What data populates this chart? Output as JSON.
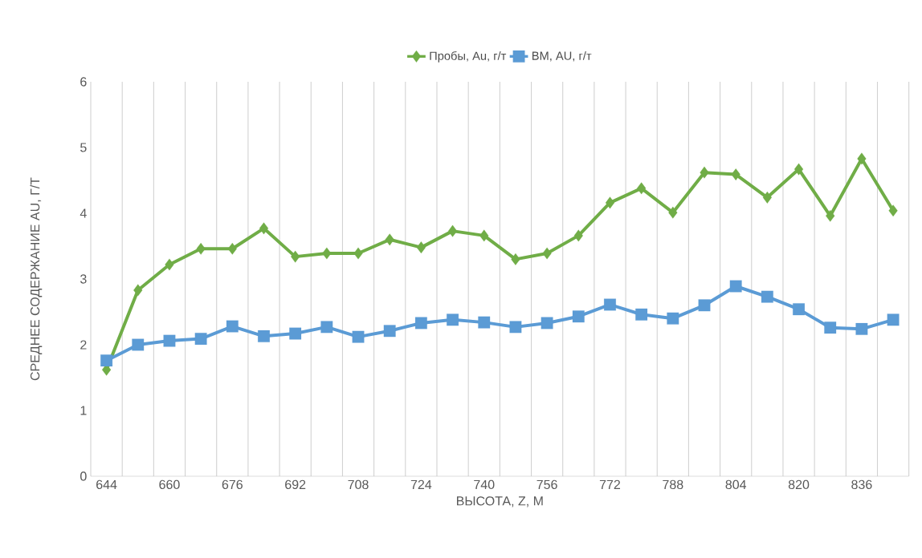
{
  "chart_data": {
    "type": "line",
    "xlabel": "ВЫСОТА, Z, М",
    "ylabel": "СРЕДНЕЕ СОДЕРЖАНИЕ AU, Г/Т",
    "categories": [
      "644",
      null,
      "660",
      null,
      "676",
      null,
      "692",
      null,
      "708",
      null,
      "724",
      null,
      "740",
      null,
      "756",
      null,
      "772",
      null,
      "788",
      null,
      "804",
      null,
      "820",
      null,
      "836",
      null
    ],
    "series": [
      {
        "name": "Пробы, Au, г/т",
        "color": "#70ad47",
        "marker": "diamond",
        "values": [
          1.62,
          2.83,
          3.22,
          3.46,
          3.46,
          3.77,
          3.34,
          3.39,
          3.39,
          3.6,
          3.48,
          3.73,
          3.66,
          3.3,
          3.39,
          3.66,
          4.16,
          4.38,
          4.01,
          4.62,
          4.59,
          4.24,
          4.67,
          3.96,
          4.83,
          4.04
        ]
      },
      {
        "name": "ВМ, AU, г/т",
        "color": "#5b9bd5",
        "marker": "square",
        "values": [
          1.76,
          2.0,
          2.06,
          2.09,
          2.28,
          2.13,
          2.17,
          2.27,
          2.12,
          2.21,
          2.33,
          2.38,
          2.34,
          2.27,
          2.33,
          2.43,
          2.61,
          2.46,
          2.4,
          2.6,
          2.89,
          2.73,
          2.54,
          2.26,
          2.24,
          2.38
        ]
      }
    ],
    "ylim": [
      0,
      6
    ],
    "yticks": [
      0,
      1,
      2,
      3,
      4,
      5,
      6
    ],
    "grid": "x",
    "legend": "top"
  }
}
